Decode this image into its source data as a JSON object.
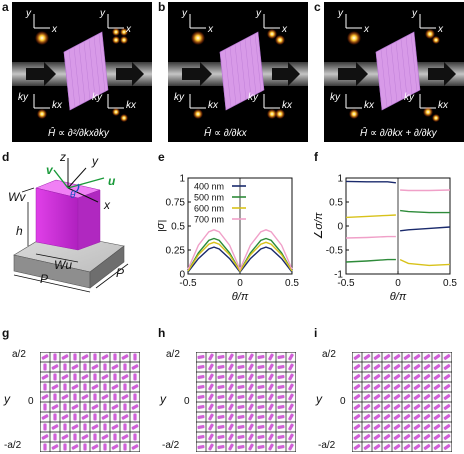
{
  "panels": {
    "a": {
      "letter": "a",
      "formula": "Ĥ ∝ ∂²/∂kx∂ky"
    },
    "b": {
      "letter": "b",
      "formula": "Ĥ ∝ ∂/∂kx"
    },
    "c": {
      "letter": "c",
      "formula": "Ĥ ∝ ∂/∂kx + ∂/∂ky"
    },
    "d": {
      "letter": "d"
    },
    "e": {
      "letter": "e"
    },
    "f": {
      "letter": "f"
    },
    "g": {
      "letter": "g"
    },
    "h": {
      "letter": "h"
    },
    "i": {
      "letter": "i"
    }
  },
  "axis_labels": {
    "x": "x",
    "y": "y",
    "kx": "kx",
    "ky": "ky"
  },
  "schematic": {
    "z": "z",
    "y": "y",
    "x": "x",
    "v": "v",
    "u": "u",
    "theta": "θ",
    "wv": "Wv",
    "h": "h",
    "wu": "Wu",
    "p1": "P",
    "p2": "P"
  },
  "metasurface": {
    "top": "a/2",
    "mid": "0",
    "bottom": "-a/2",
    "ylabel": "y"
  },
  "watermark": "",
  "chart_data": [
    {
      "type": "line",
      "panel": "e",
      "ylabel": "|σ|",
      "xlabel": "θ/π",
      "xlim": [
        -0.5,
        0.5
      ],
      "ylim": [
        0,
        1
      ],
      "xticks": [
        "-0.5",
        "0",
        "0.5"
      ],
      "yticks": [
        "0",
        "0.25",
        "0.5",
        "0.75",
        "1"
      ],
      "legend_position": "top-left",
      "series": [
        {
          "name": "400 nm",
          "color": "#1a2a6c",
          "x": [
            -0.5,
            -0.4,
            -0.3,
            -0.25,
            -0.2,
            -0.1,
            0,
            0.1,
            0.2,
            0.25,
            0.3,
            0.4,
            0.5
          ],
          "y": [
            0.02,
            0.16,
            0.26,
            0.28,
            0.26,
            0.16,
            0.02,
            0.16,
            0.26,
            0.28,
            0.26,
            0.16,
            0.02
          ]
        },
        {
          "name": "500 nm",
          "color": "#2e8b3a",
          "x": [
            -0.5,
            -0.4,
            -0.3,
            -0.25,
            -0.2,
            -0.1,
            0,
            0.1,
            0.2,
            0.25,
            0.3,
            0.4,
            0.5
          ],
          "y": [
            0.03,
            0.22,
            0.35,
            0.37,
            0.35,
            0.22,
            0.03,
            0.22,
            0.35,
            0.37,
            0.35,
            0.22,
            0.03
          ]
        },
        {
          "name": "600 nm",
          "color": "#d8c21a",
          "x": [
            -0.5,
            -0.4,
            -0.3,
            -0.25,
            -0.2,
            -0.1,
            0,
            0.1,
            0.2,
            0.25,
            0.3,
            0.4,
            0.5
          ],
          "y": [
            0.03,
            0.2,
            0.31,
            0.33,
            0.31,
            0.2,
            0.03,
            0.2,
            0.31,
            0.33,
            0.31,
            0.2,
            0.03
          ]
        },
        {
          "name": "700 nm",
          "color": "#f0a0c8",
          "x": [
            -0.5,
            -0.4,
            -0.3,
            -0.25,
            -0.2,
            -0.1,
            0,
            0.1,
            0.2,
            0.25,
            0.3,
            0.4,
            0.5
          ],
          "y": [
            0.05,
            0.3,
            0.44,
            0.46,
            0.44,
            0.3,
            0.05,
            0.3,
            0.44,
            0.46,
            0.44,
            0.3,
            0.05
          ]
        }
      ]
    },
    {
      "type": "line",
      "panel": "f",
      "ylabel": "∠σ/π",
      "xlabel": "θ/π",
      "xlim": [
        -0.5,
        0.5
      ],
      "ylim": [
        -1,
        1
      ],
      "xticks": [
        "-0.5",
        "0",
        "0.5"
      ],
      "yticks": [
        "-1",
        "-0.5",
        "0",
        "0.5",
        "1"
      ],
      "series": [
        {
          "name": "400 nm",
          "color": "#1a2a6c",
          "segments": [
            {
              "x": [
                -0.5,
                -0.3,
                -0.1,
                -0.02
              ],
              "y": [
                0.93,
                0.92,
                0.92,
                0.9
              ]
            },
            {
              "x": [
                0.02,
                0.1,
                0.3,
                0.5
              ],
              "y": [
                -0.1,
                -0.08,
                -0.05,
                -0.02
              ]
            }
          ]
        },
        {
          "name": "500 nm",
          "color": "#2e8b3a",
          "segments": [
            {
              "x": [
                -0.5,
                -0.3,
                -0.1,
                -0.02
              ],
              "y": [
                -0.75,
                -0.73,
                -0.7,
                -0.7
              ]
            },
            {
              "x": [
                0.02,
                0.1,
                0.3,
                0.5
              ],
              "y": [
                0.32,
                0.3,
                0.28,
                0.28
              ]
            }
          ]
        },
        {
          "name": "600 nm",
          "color": "#d8c21a",
          "segments": [
            {
              "x": [
                -0.5,
                -0.3,
                -0.1,
                -0.02
              ],
              "y": [
                0.18,
                0.2,
                0.22,
                0.23
              ]
            },
            {
              "x": [
                0.02,
                0.1,
                0.3,
                0.5
              ],
              "y": [
                -0.7,
                -0.78,
                -0.82,
                -0.8
              ]
            }
          ]
        },
        {
          "name": "700 nm",
          "color": "#f0a0c8",
          "segments": [
            {
              "x": [
                -0.5,
                -0.3,
                -0.1,
                -0.02
              ],
              "y": [
                -0.25,
                -0.24,
                -0.22,
                -0.22
              ]
            },
            {
              "x": [
                0.02,
                0.1,
                0.3,
                0.5
              ],
              "y": [
                0.75,
                0.74,
                0.74,
                0.75
              ]
            }
          ]
        }
      ]
    }
  ]
}
